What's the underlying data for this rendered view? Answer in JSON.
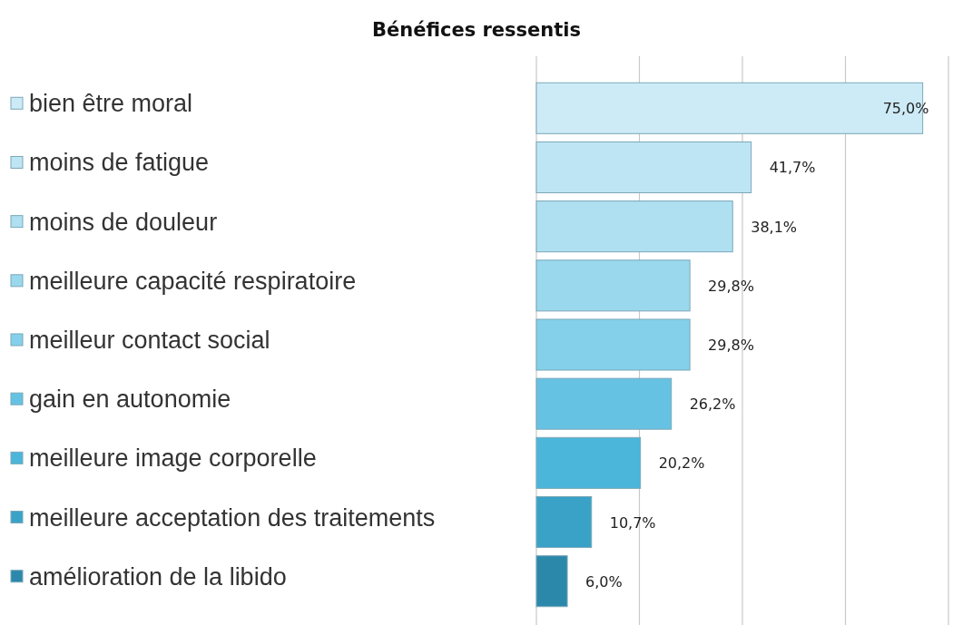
{
  "chart_data": {
    "type": "bar",
    "orientation": "horizontal",
    "title": "Bénéfices ressentis",
    "categories": [
      "bien être moral",
      "moins de fatigue",
      "moins de douleur",
      "meilleure capacité respiratoire",
      "meilleur contact social",
      "gain en autonomie",
      "meilleure image corporelle",
      "meilleure acceptation des traitements",
      "amélioration de la libido"
    ],
    "values": [
      75.0,
      41.7,
      38.1,
      29.8,
      29.8,
      26.2,
      20.2,
      10.7,
      6.0
    ],
    "colors": [
      "#cdebf6",
      "#bde5f4",
      "#aee0f1",
      "#9ad8ee",
      "#84d0ea",
      "#66c2e3",
      "#4cb5da",
      "#3aa2c6",
      "#2b88aa"
    ],
    "value_labels": [
      "75,0%",
      "41,7%",
      "38,1%",
      "29,8%",
      "29,8%",
      "26,2%",
      "20,2%",
      "10,7%",
      "6,0%"
    ],
    "xlim": [
      0,
      80
    ],
    "xticks": [
      {
        "value": 0,
        "label": null
      },
      {
        "value": 20,
        "label": null
      },
      {
        "value": 40,
        "label": null
      },
      {
        "value": 60,
        "label": null
      },
      {
        "value": 80,
        "label": null
      }
    ],
    "tick_labels": "y",
    "grid": "x"
  }
}
